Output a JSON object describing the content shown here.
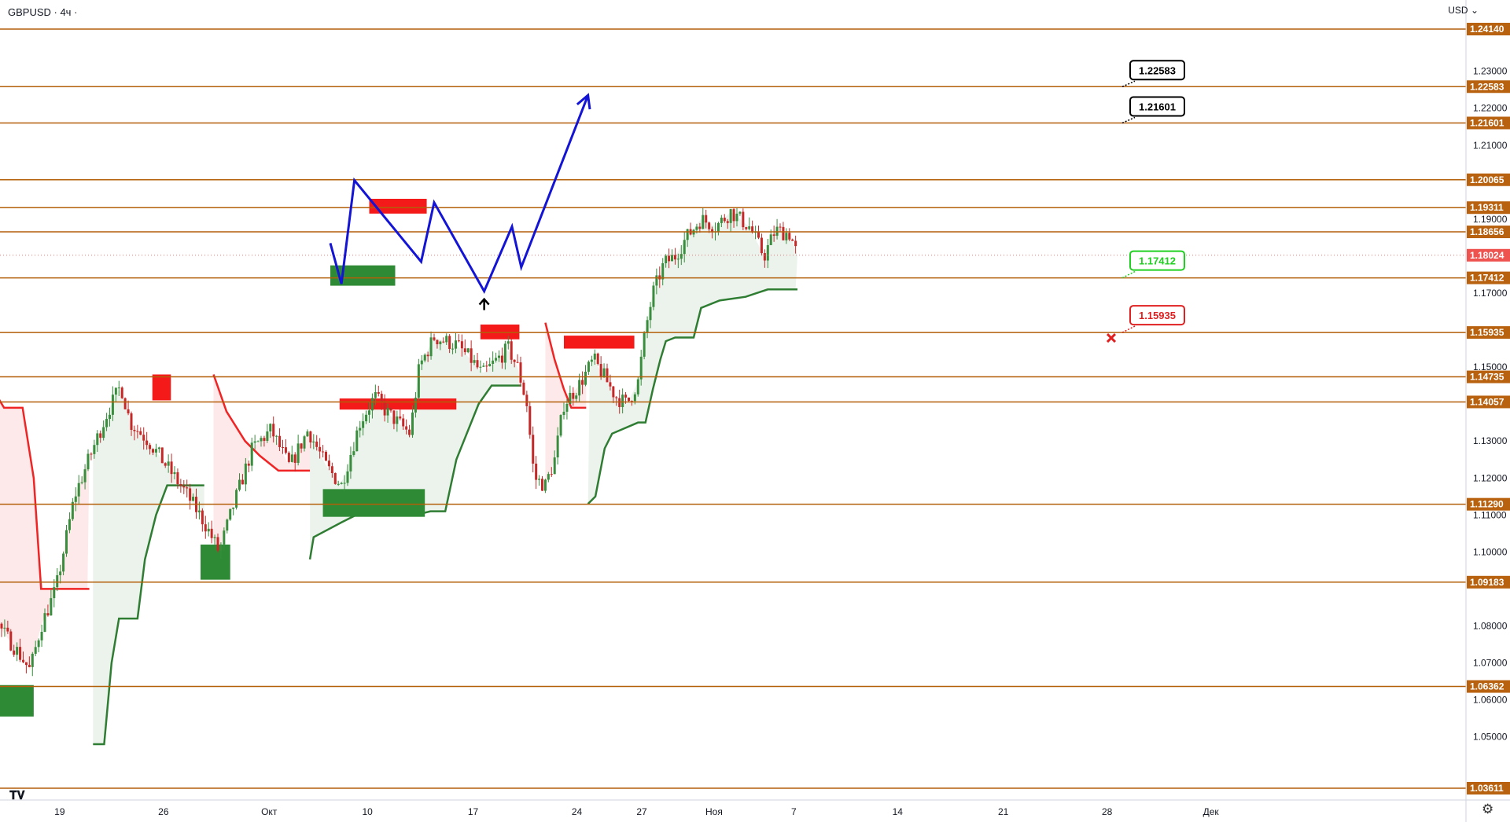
{
  "header": {
    "symbol": "GBPUSD",
    "interval": "4ч",
    "title": "GBPUSD · 4ч ·",
    "currency": "USD"
  },
  "chart_data": {
    "type": "candlestick",
    "ylim": [
      1.0361,
      1.2414
    ],
    "y_ticks": [
      1.05,
      1.06,
      1.07,
      1.08,
      1.1,
      1.11,
      1.12,
      1.13,
      1.15,
      1.17,
      1.19,
      1.21,
      1.22,
      1.23
    ],
    "y_tick_labels": [
      "1.05000",
      "1.06000",
      "1.07000",
      "1.08000",
      "1.10000",
      "1.11000",
      "1.12000",
      "1.13000",
      "1.15000",
      "1.17000",
      "1.19000",
      "1.21000",
      "1.22000",
      "1.23000"
    ],
    "x_ticks": [
      "19",
      "26",
      "Окт",
      "10",
      "17",
      "24",
      "27",
      "Ноя",
      "7",
      "14",
      "21",
      "28",
      "Дек"
    ],
    "levels": [
      {
        "value": 1.2414,
        "label": "1.24140"
      },
      {
        "value": 1.22583,
        "label": "1.22583"
      },
      {
        "value": 1.21601,
        "label": "1.21601"
      },
      {
        "value": 1.20065,
        "label": "1.20065"
      },
      {
        "value": 1.19311,
        "label": "1.19311"
      },
      {
        "value": 1.18656,
        "label": "1.18656"
      },
      {
        "value": 1.17412,
        "label": "1.17412"
      },
      {
        "value": 1.15935,
        "label": "1.15935"
      },
      {
        "value": 1.14735,
        "label": "1.14735"
      },
      {
        "value": 1.14057,
        "label": "1.14057"
      },
      {
        "value": 1.1129,
        "label": "1.11290"
      },
      {
        "value": 1.09183,
        "label": "1.09183"
      },
      {
        "value": 1.06362,
        "label": "1.06362"
      },
      {
        "value": 1.03611,
        "label": "1.03611"
      }
    ],
    "current_price": {
      "value": 1.18024,
      "label": "1.18024"
    },
    "callouts": [
      {
        "label": "1.22583",
        "value": 1.22583,
        "type": "target"
      },
      {
        "label": "1.21601",
        "value": 1.21601,
        "type": "target"
      },
      {
        "label": "1.17412",
        "value": 1.17412,
        "type": "entry"
      },
      {
        "label": "1.15935",
        "value": 1.15935,
        "type": "stop"
      }
    ],
    "price_path": [
      {
        "time": 14.0,
        "price": 1.1835
      },
      {
        "time": 14.6,
        "price": 1.1725
      },
      {
        "time": 15.3,
        "price": 1.2005
      },
      {
        "time": 18.9,
        "price": 1.1785
      },
      {
        "time": 19.6,
        "price": 1.1945
      },
      {
        "time": 22.3,
        "price": 1.1705
      },
      {
        "time": 23.8,
        "price": 1.188
      },
      {
        "time": 24.3,
        "price": 1.177
      },
      {
        "time": 27.9,
        "price": 1.2235
      }
    ],
    "supply_zones": [
      {
        "t0": 4.4,
        "t1": 5.4,
        "p0": 1.141,
        "p1": 1.148
      },
      {
        "t0": 14.5,
        "t1": 20.8,
        "p0": 1.1385,
        "p1": 1.1415
      },
      {
        "t0": 22.1,
        "t1": 24.2,
        "p0": 1.1575,
        "p1": 1.1615
      },
      {
        "t0": 26.6,
        "t1": 30.4,
        "p0": 1.155,
        "p1": 1.1585
      },
      {
        "t0": 16.1,
        "t1": 19.2,
        "p0": 1.1915,
        "p1": 1.1955
      }
    ],
    "demand_zones": [
      {
        "t0": -4.9,
        "t1": -2.0,
        "p0": 1.0555,
        "p1": 1.064
      },
      {
        "t0": 7.0,
        "t1": 8.6,
        "p0": 1.0925,
        "p1": 1.102
      },
      {
        "t0": 13.6,
        "t1": 19.1,
        "p0": 1.1095,
        "p1": 1.117
      },
      {
        "t0": 14.0,
        "t1": 17.5,
        "p0": 1.172,
        "p1": 1.1775
      }
    ]
  },
  "theme": {
    "level_color": "#b35f0a",
    "level_fill": "#b86210",
    "bull": "#2e7d32",
    "bear": "#f02424",
    "path": "#1414d6",
    "entry": "#20d020",
    "stop": "#e02020"
  }
}
